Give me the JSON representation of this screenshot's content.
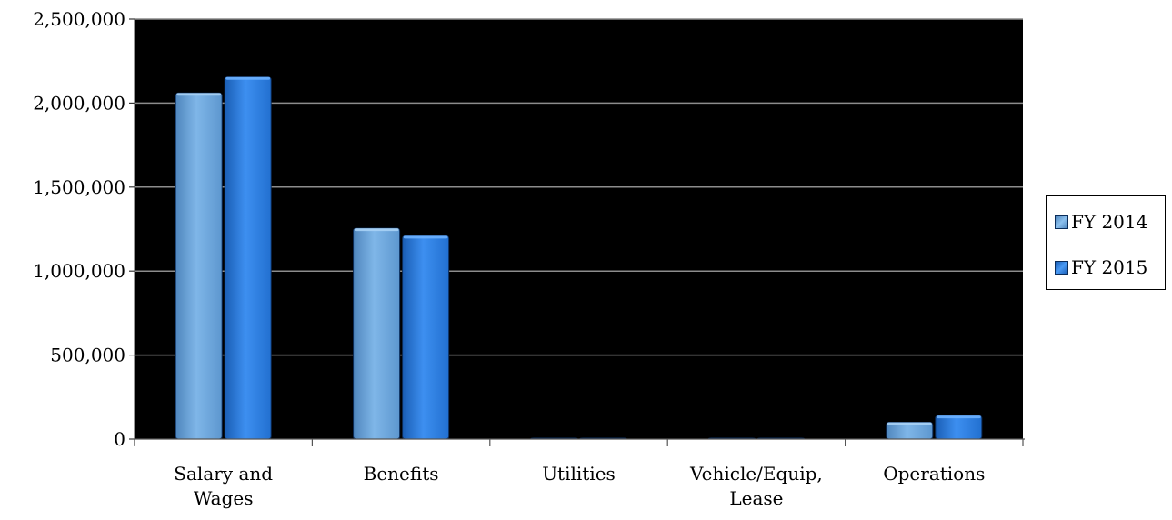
{
  "chart_data": {
    "type": "bar",
    "categories": [
      "Salary and Wages",
      "Benefits",
      "Utilities",
      "Vehicle/Equip, Lease",
      "Operations"
    ],
    "category_lines": [
      [
        "Salary and",
        "Wages"
      ],
      [
        "Benefits"
      ],
      [
        "Utilities"
      ],
      [
        "Vehicle/Equip,",
        "Lease"
      ],
      [
        "Operations"
      ]
    ],
    "series": [
      {
        "name": "FY 2014",
        "values": [
          2060000,
          1255000,
          0,
          0,
          100000
        ],
        "color": "#6fa8dc"
      },
      {
        "name": "FY 2015",
        "values": [
          2155000,
          1210000,
          0,
          0,
          140000
        ],
        "color": "#2a7fe0"
      }
    ],
    "ylim": [
      0,
      2500000
    ],
    "yticks": [
      0,
      500000,
      1000000,
      1500000,
      2000000,
      2500000
    ],
    "ytick_labels": [
      "0",
      "500,000",
      "1,000,000",
      "1,500,000",
      "2,000,000",
      "2,500,000"
    ],
    "grid": true,
    "plot_background": "#000000",
    "grid_color": "#8c8c8c",
    "legend_position": "right",
    "title": "",
    "xlabel": "",
    "ylabel": ""
  }
}
